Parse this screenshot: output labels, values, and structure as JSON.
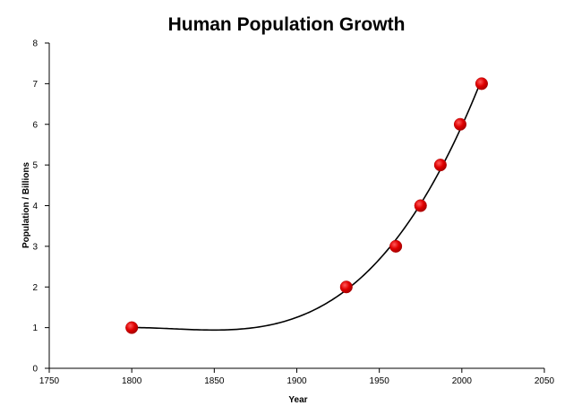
{
  "chart_data": {
    "type": "scatter",
    "title": "Human Population Growth",
    "xlabel": "Year",
    "ylabel": "Population / Billions",
    "xlim": [
      1750,
      2050
    ],
    "ylim": [
      0,
      8
    ],
    "x_ticks": [
      1750,
      1800,
      1850,
      1900,
      1950,
      2000,
      2050
    ],
    "y_ticks": [
      0,
      1,
      2,
      3,
      4,
      5,
      6,
      7,
      8
    ],
    "grid": false,
    "legend": "none",
    "series": [
      {
        "x": [
          1800,
          1930,
          1960,
          1975,
          1987,
          1999,
          2012
        ],
        "y": [
          1,
          2,
          3,
          4,
          5,
          6,
          7
        ],
        "marker_color": "#e00000",
        "trendline": "polynomial",
        "trendline_color": "#000000"
      }
    ]
  }
}
